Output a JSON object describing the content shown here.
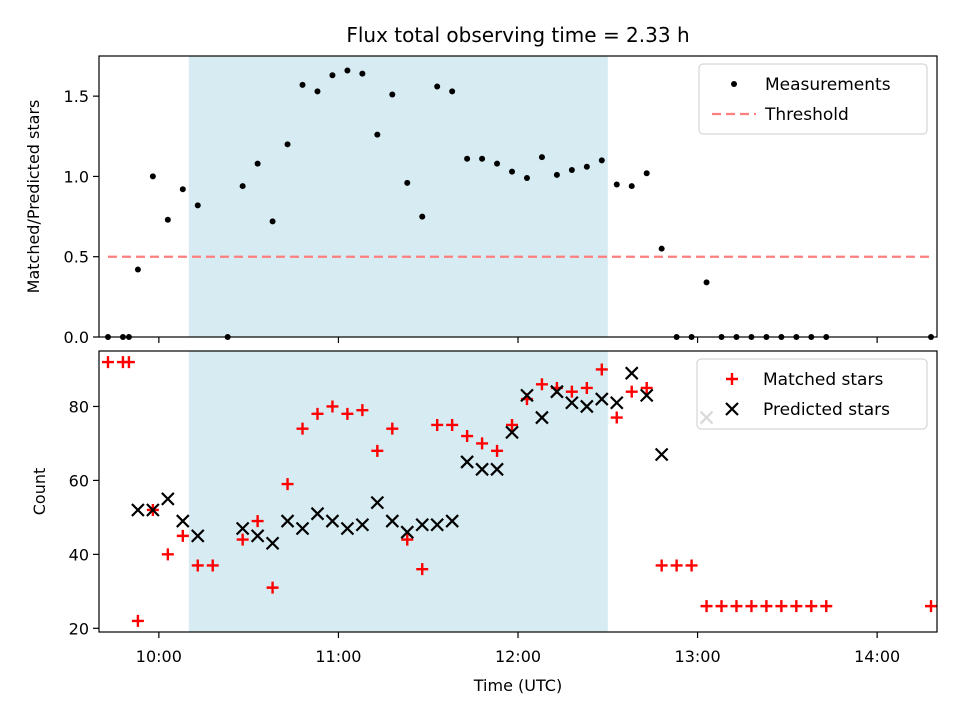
{
  "title": "Flux total observing time = 2.33 h",
  "xlabel": "Time (UTC)",
  "colors": {
    "measurement": "#000000",
    "threshold": "#ff7f7f",
    "matched": "#ff0000",
    "predicted": "#000000",
    "highlight": "#add8e6"
  },
  "chart_data": [
    {
      "type": "scatter",
      "ylabel": "Matched/Predicted stars",
      "xlim": [
        "09:40",
        "14:20"
      ],
      "ylim": [
        0,
        1.75
      ],
      "yticks": [
        0.0,
        0.5,
        1.0,
        1.5
      ],
      "ytick_labels": [
        "0.0",
        "0.5",
        "1.0",
        "1.5"
      ],
      "xticks": [
        "10:00",
        "11:00",
        "12:00",
        "13:00",
        "14:00"
      ],
      "grid": false,
      "legend_position": "top-right",
      "shaded_span": [
        "10:10",
        "12:30"
      ],
      "series": [
        {
          "name": "Measurements",
          "marker": "dot",
          "points": [
            [
              "09:43",
              0.0
            ],
            [
              "09:48",
              0.0
            ],
            [
              "09:50",
              0.0
            ],
            [
              "09:53",
              0.42
            ],
            [
              "09:58",
              1.0
            ],
            [
              "10:03",
              0.73
            ],
            [
              "10:08",
              0.92
            ],
            [
              "10:13",
              0.82
            ],
            [
              "10:23",
              0.0
            ],
            [
              "10:28",
              0.94
            ],
            [
              "10:33",
              1.08
            ],
            [
              "10:38",
              0.72
            ],
            [
              "10:43",
              1.2
            ],
            [
              "10:48",
              1.57
            ],
            [
              "10:53",
              1.53
            ],
            [
              "10:58",
              1.63
            ],
            [
              "11:03",
              1.66
            ],
            [
              "11:08",
              1.64
            ],
            [
              "11:13",
              1.26
            ],
            [
              "11:18",
              1.51
            ],
            [
              "11:23",
              0.96
            ],
            [
              "11:28",
              0.75
            ],
            [
              "11:33",
              1.56
            ],
            [
              "11:38",
              1.53
            ],
            [
              "11:43",
              1.11
            ],
            [
              "11:48",
              1.11
            ],
            [
              "11:53",
              1.08
            ],
            [
              "11:58",
              1.03
            ],
            [
              "12:03",
              0.99
            ],
            [
              "12:08",
              1.12
            ],
            [
              "12:13",
              1.01
            ],
            [
              "12:18",
              1.04
            ],
            [
              "12:23",
              1.06
            ],
            [
              "12:28",
              1.1
            ],
            [
              "12:33",
              0.95
            ],
            [
              "12:38",
              0.94
            ],
            [
              "12:43",
              1.02
            ],
            [
              "12:48",
              0.55
            ],
            [
              "12:53",
              0.0
            ],
            [
              "12:58",
              0.0
            ],
            [
              "13:03",
              0.34
            ],
            [
              "13:08",
              0.0
            ],
            [
              "13:13",
              0.0
            ],
            [
              "13:18",
              0.0
            ],
            [
              "13:23",
              0.0
            ],
            [
              "13:28",
              0.0
            ],
            [
              "13:33",
              0.0
            ],
            [
              "13:38",
              0.0
            ],
            [
              "13:43",
              0.0
            ],
            [
              "14:18",
              0.0
            ]
          ]
        },
        {
          "name": "Threshold",
          "marker": "dashed-line",
          "points": [
            [
              "09:43",
              0.5
            ],
            [
              "14:18",
              0.5
            ]
          ]
        }
      ]
    },
    {
      "type": "scatter",
      "ylabel": "Count",
      "xlim": [
        "09:40",
        "14:20"
      ],
      "ylim": [
        19,
        95
      ],
      "yticks": [
        20,
        40,
        60,
        80
      ],
      "xticks": [
        "10:00",
        "11:00",
        "12:00",
        "13:00",
        "14:00"
      ],
      "xtick_labels": [
        "10:00",
        "11:00",
        "12:00",
        "13:00",
        "14:00"
      ],
      "grid": false,
      "legend_position": "top-right",
      "shaded_span": [
        "10:10",
        "12:30"
      ],
      "series": [
        {
          "name": "Matched stars",
          "marker": "plus",
          "points": [
            [
              "09:43",
              92
            ],
            [
              "09:48",
              92
            ],
            [
              "09:50",
              92
            ],
            [
              "09:53",
              22
            ],
            [
              "09:58",
              52
            ],
            [
              "10:03",
              40
            ],
            [
              "10:08",
              45
            ],
            [
              "10:13",
              37
            ],
            [
              "10:18",
              37
            ],
            [
              "10:28",
              44
            ],
            [
              "10:33",
              49
            ],
            [
              "10:38",
              31
            ],
            [
              "10:43",
              59
            ],
            [
              "10:48",
              74
            ],
            [
              "10:53",
              78
            ],
            [
              "10:58",
              80
            ],
            [
              "11:03",
              78
            ],
            [
              "11:08",
              79
            ],
            [
              "11:13",
              68
            ],
            [
              "11:18",
              74
            ],
            [
              "11:23",
              44
            ],
            [
              "11:28",
              36
            ],
            [
              "11:33",
              75
            ],
            [
              "11:38",
              75
            ],
            [
              "11:43",
              72
            ],
            [
              "11:48",
              70
            ],
            [
              "11:53",
              68
            ],
            [
              "11:58",
              75
            ],
            [
              "12:03",
              82
            ],
            [
              "12:08",
              86
            ],
            [
              "12:13",
              85
            ],
            [
              "12:18",
              84
            ],
            [
              "12:23",
              85
            ],
            [
              "12:28",
              90
            ],
            [
              "12:33",
              77
            ],
            [
              "12:38",
              84
            ],
            [
              "12:43",
              85
            ],
            [
              "12:48",
              37
            ],
            [
              "12:53",
              37
            ],
            [
              "12:58",
              37
            ],
            [
              "13:03",
              26
            ],
            [
              "13:08",
              26
            ],
            [
              "13:13",
              26
            ],
            [
              "13:18",
              26
            ],
            [
              "13:23",
              26
            ],
            [
              "13:28",
              26
            ],
            [
              "13:33",
              26
            ],
            [
              "13:38",
              26
            ],
            [
              "13:43",
              26
            ],
            [
              "14:18",
              26
            ]
          ]
        },
        {
          "name": "Predicted stars",
          "marker": "x",
          "points": [
            [
              "09:53",
              52
            ],
            [
              "09:58",
              52
            ],
            [
              "10:03",
              55
            ],
            [
              "10:08",
              49
            ],
            [
              "10:13",
              45
            ],
            [
              "10:28",
              47
            ],
            [
              "10:33",
              45
            ],
            [
              "10:38",
              43
            ],
            [
              "10:43",
              49
            ],
            [
              "10:48",
              47
            ],
            [
              "10:53",
              51
            ],
            [
              "10:58",
              49
            ],
            [
              "11:03",
              47
            ],
            [
              "11:08",
              48
            ],
            [
              "11:13",
              54
            ],
            [
              "11:18",
              49
            ],
            [
              "11:23",
              46
            ],
            [
              "11:28",
              48
            ],
            [
              "11:33",
              48
            ],
            [
              "11:38",
              49
            ],
            [
              "11:43",
              65
            ],
            [
              "11:48",
              63
            ],
            [
              "11:53",
              63
            ],
            [
              "11:58",
              73
            ],
            [
              "12:03",
              83
            ],
            [
              "12:08",
              77
            ],
            [
              "12:13",
              84
            ],
            [
              "12:18",
              81
            ],
            [
              "12:23",
              80
            ],
            [
              "12:28",
              82
            ],
            [
              "12:33",
              81
            ],
            [
              "12:38",
              89
            ],
            [
              "12:43",
              83
            ],
            [
              "12:48",
              67
            ],
            [
              "13:03",
              77
            ]
          ]
        }
      ]
    }
  ]
}
